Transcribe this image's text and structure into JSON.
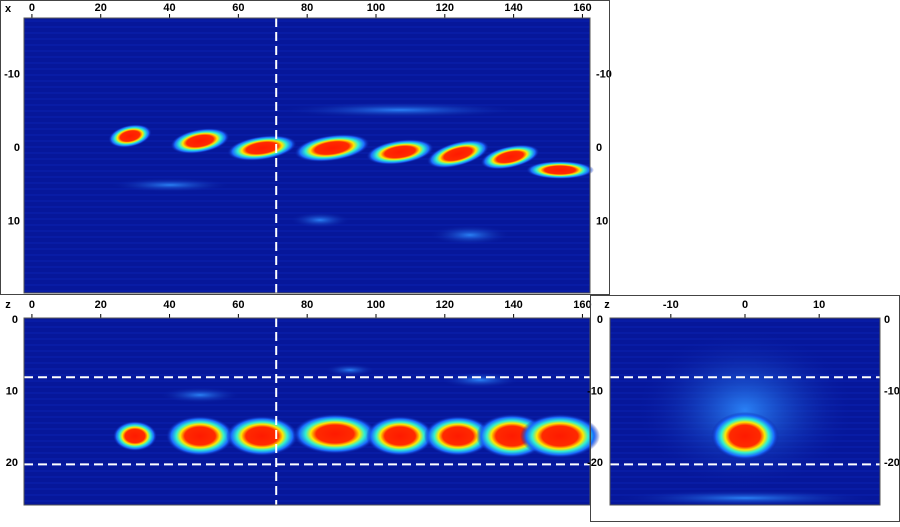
{
  "panels": [
    {
      "axis_label": "x",
      "xlim": [
        -2.3,
        162.2
      ],
      "xticks": [
        0,
        20,
        40,
        60,
        80,
        100,
        120,
        140,
        160
      ],
      "ylim": [
        -17.7,
        19.7
      ],
      "yticks": [
        -10,
        0,
        10
      ],
      "vline": 71
    },
    {
      "axis_label": "z",
      "xlim": [
        -2.3,
        162.2
      ],
      "xticks": [
        0,
        20,
        40,
        60,
        80,
        100,
        120,
        140,
        160
      ],
      "ylim": [
        -0.3,
        25.9
      ],
      "yticks": [
        0,
        10,
        20
      ],
      "vline": 71,
      "hlines": [
        8,
        20.2
      ]
    },
    {
      "axis_label": "z",
      "xlim": [
        -18.2,
        18.2
      ],
      "xticks": [
        -10,
        0,
        10
      ],
      "ylim": [
        0.3,
        -25.9
      ],
      "yticks": [
        0,
        -10,
        -20
      ],
      "hlines": [
        -8,
        -20.2
      ]
    }
  ]
}
